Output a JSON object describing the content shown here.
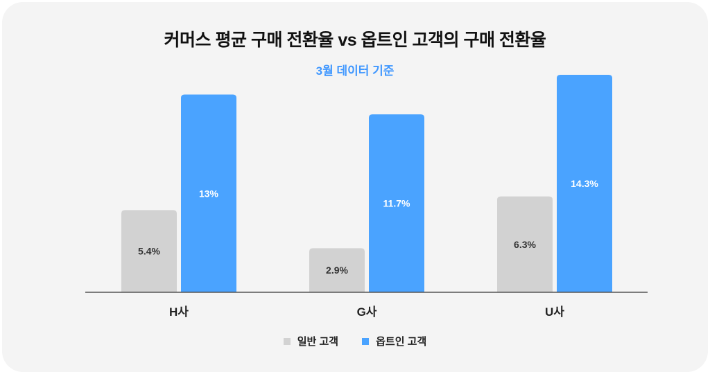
{
  "chart_data": {
    "type": "bar",
    "title": "커머스 평균 구매 전환율 vs 옵트인 고객의 구매 전환율",
    "subtitle": "3월 데이터 기준",
    "categories": [
      "H사",
      "G사",
      "U사"
    ],
    "series": [
      {
        "name": "일반 고객",
        "values": [
          5.4,
          2.9,
          6.3
        ],
        "labels": [
          "5.4%",
          "2.9%",
          "6.3%"
        ],
        "color": "#d2d2d2",
        "label_color": "#333333"
      },
      {
        "name": "옵트인 고객",
        "values": [
          13,
          11.7,
          14.3
        ],
        "labels": [
          "13%",
          "11.7%",
          "14.3%"
        ],
        "color": "#4aa3ff",
        "label_color": "#ffffff"
      }
    ],
    "ylim": [
      0,
      14.3
    ],
    "grid": false,
    "legend_position": "bottom-center",
    "axis_color": "#555555"
  }
}
